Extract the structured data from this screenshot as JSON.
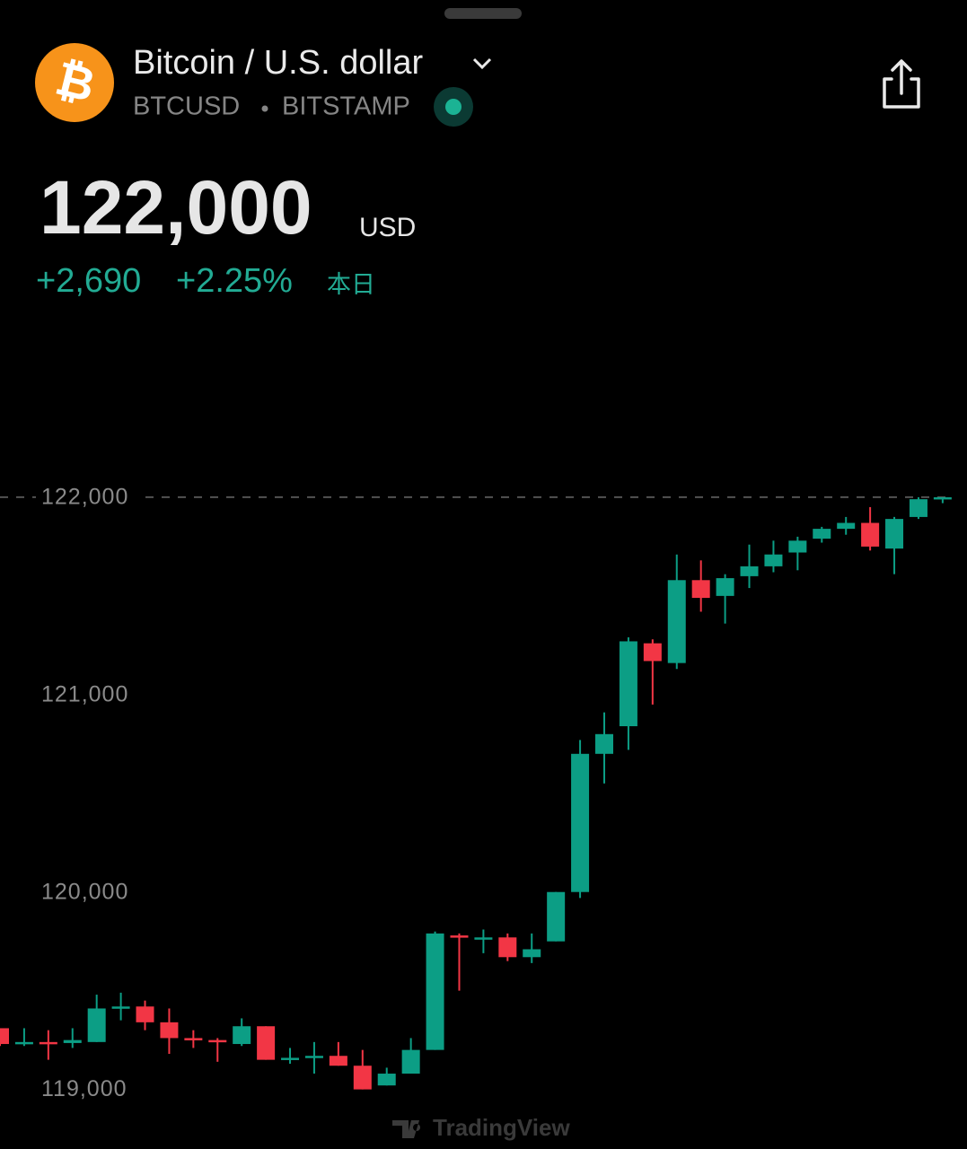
{
  "header": {
    "logo": "₿",
    "title": "Bitcoin / U.S. dollar",
    "symbol": "BTCUSD",
    "exchange": "BITSTAMP",
    "price": "122,000",
    "currency": "USD",
    "change": "+2,690",
    "change_pct": "+2.25%",
    "period": "本日"
  },
  "chart_data": {
    "type": "candlestick",
    "open": [
      119310,
      119230,
      119240,
      119235,
      119240,
      119410,
      119420,
      119340,
      119260,
      119250,
      119230,
      119320,
      119150,
      119160,
      119170,
      119120,
      119020,
      119080,
      119200,
      119780,
      119760,
      119770,
      119670,
      119750,
      120000,
      120700,
      120840,
      121260,
      121160,
      121580,
      121500,
      121600,
      121650,
      121720,
      121790,
      121840,
      121870,
      121740,
      121900,
      121990
    ],
    "high": [
      119310,
      119310,
      119300,
      119310,
      119480,
      119490,
      119450,
      119410,
      119300,
      119260,
      119360,
      119320,
      119210,
      119240,
      119240,
      119200,
      119110,
      119260,
      119800,
      119790,
      119810,
      119790,
      119790,
      120000,
      120770,
      120910,
      121290,
      121280,
      121710,
      121680,
      121610,
      121760,
      121780,
      121800,
      121850,
      121900,
      121950,
      121900,
      122000,
      122000
    ],
    "low": [
      119220,
      119220,
      119150,
      119210,
      119240,
      119350,
      119300,
      119180,
      119210,
      119140,
      119220,
      119150,
      119130,
      119080,
      119120,
      119000,
      119020,
      119080,
      119200,
      119500,
      119690,
      119650,
      119640,
      119750,
      119970,
      120550,
      120720,
      120950,
      121130,
      121420,
      121360,
      121540,
      121620,
      121630,
      121770,
      121810,
      121730,
      121610,
      121890,
      121970
    ],
    "close": [
      119230,
      119240,
      119230,
      119250,
      119410,
      119420,
      119340,
      119260,
      119250,
      119240,
      119320,
      119150,
      119160,
      119170,
      119120,
      119000,
      119080,
      119200,
      119790,
      119770,
      119770,
      119670,
      119710,
      120000,
      120700,
      120800,
      121270,
      121170,
      121580,
      121490,
      121590,
      121650,
      121710,
      121780,
      121840,
      121870,
      121750,
      121890,
      121990,
      122000
    ],
    "up_color": "#0c9e85",
    "down_color": "#f23645",
    "last_price": 122000,
    "ylim": [
      118880,
      122700
    ],
    "yticks": [
      {
        "value": 119000,
        "label": "119,000"
      },
      {
        "value": 120000,
        "label": "120,000"
      },
      {
        "value": 121000,
        "label": "121,000"
      },
      {
        "value": 122000,
        "label": "122,000"
      }
    ],
    "watermark": "TradingView"
  }
}
